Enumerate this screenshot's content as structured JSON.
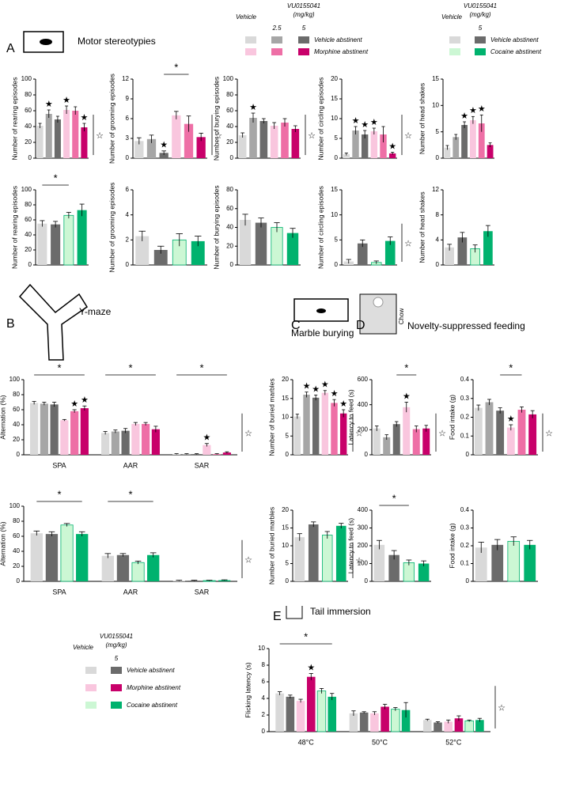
{
  "sections": [
    {
      "letter": "A",
      "title": "Motor stereotypies"
    },
    {
      "letter": "B",
      "title": "Y-maze"
    },
    {
      "letter": "C",
      "title": "Marble burying"
    },
    {
      "letter": "D",
      "title": "Novelty-suppressed feeding"
    },
    {
      "letter": "E",
      "title": "Tail immersion"
    }
  ],
  "chow": "Chow",
  "legend_morphine": {
    "vehicle": "Vehicle",
    "drug": "VU0155041",
    "unit": "(mg/kg)",
    "doses": [
      "2.5",
      "5"
    ],
    "rows": [
      {
        "label": "Vehicle abstinent",
        "colors": [
          "#d9d9d9",
          "#a6a6a6",
          "#6b6b6b"
        ]
      },
      {
        "label": "Morphine abstinent",
        "colors": [
          "#f9c6de",
          "#ee6fa6",
          "#c8006a"
        ]
      }
    ]
  },
  "legend_cocaine": {
    "vehicle": "Vehicle",
    "drug": "VU0155041",
    "unit": "(mg/kg)",
    "doses": [
      "5"
    ],
    "rows": [
      {
        "label": "Vehicle abstinent",
        "colors": [
          "#d9d9d9",
          "#6b6b6b"
        ]
      },
      {
        "label": "Cocaine abstinent",
        "colors": [
          "#ccf7d4",
          "#00b26e"
        ]
      }
    ]
  },
  "legend_all": {
    "vehicle": "Vehicle",
    "drug": "VU0155041",
    "unit": "(mg/kg)",
    "doses": [
      "5"
    ],
    "rows": [
      {
        "label": "Vehicle abstinent",
        "colors": [
          "#d9d9d9",
          "#6b6b6b"
        ]
      },
      {
        "label": "Morphine abstinent",
        "colors": [
          "#f9c6de",
          "#c8006a"
        ]
      },
      {
        "label": "Cocaine abstinent",
        "colors": [
          "#ccf7d4",
          "#00b26e"
        ]
      }
    ]
  },
  "chart_data": [
    {
      "type": "bar",
      "ylabel": "Number of rearing episodes",
      "ylim": [
        0,
        100
      ],
      "yticks": [
        0,
        20,
        40,
        60,
        80,
        100
      ],
      "values": [
        41,
        56,
        49,
        61,
        60,
        39
      ],
      "errors": [
        3,
        5,
        4,
        5,
        5,
        5
      ],
      "colors": [
        "#d9d9d9",
        "#a6a6a6",
        "#6b6b6b",
        "#f9c6de",
        "#ee6fa6",
        "#c8006a"
      ],
      "stars": [
        null,
        "★",
        null,
        "★",
        null,
        "★"
      ],
      "side_label": "☆"
    },
    {
      "type": "bar",
      "ylabel": "Number of grooming episodes",
      "ylim": [
        0,
        12
      ],
      "yticks": [
        0,
        3,
        6,
        9,
        12
      ],
      "values": [
        2.6,
        2.9,
        0.8,
        6.5,
        5.2,
        3.2
      ],
      "errors": [
        0.5,
        0.6,
        0.3,
        0.6,
        1.2,
        0.6
      ],
      "colors": [
        "#d9d9d9",
        "#a6a6a6",
        "#6b6b6b",
        "#f9c6de",
        "#ee6fa6",
        "#c8006a"
      ],
      "stars": [
        null,
        null,
        "★",
        null,
        null,
        null
      ],
      "bracket": {
        "label": "*",
        "span": [
          2,
          4
        ]
      },
      "side_label": "☆"
    },
    {
      "type": "bar",
      "ylabel": "Number of burying episodes",
      "ylim": [
        0,
        100
      ],
      "yticks": [
        0,
        20,
        40,
        60,
        80,
        100
      ],
      "values": [
        29,
        51,
        47,
        41,
        45,
        37
      ],
      "errors": [
        3,
        6,
        3,
        4,
        5,
        4
      ],
      "colors": [
        "#d9d9d9",
        "#a6a6a6",
        "#6b6b6b",
        "#f9c6de",
        "#ee6fa6",
        "#c8006a"
      ],
      "stars": [
        null,
        "★",
        null,
        null,
        null,
        null
      ],
      "side_label": "☆"
    },
    {
      "type": "bar",
      "ylabel": "Number of circling episodes",
      "ylim": [
        0,
        20
      ],
      "yticks": [
        0,
        5,
        10,
        15,
        20
      ],
      "values": [
        1,
        7,
        6,
        6.8,
        6,
        1.2
      ],
      "errors": [
        0.3,
        1,
        1,
        0.8,
        2,
        0.3
      ],
      "colors": [
        "#d9d9d9",
        "#a6a6a6",
        "#6b6b6b",
        "#f9c6de",
        "#ee6fa6",
        "#c8006a"
      ],
      "stars": [
        null,
        "★",
        "★",
        "★",
        null,
        "★"
      ],
      "side_label": "☆"
    },
    {
      "type": "bar",
      "ylabel": "Number of head shakes",
      "ylim": [
        0,
        15
      ],
      "yticks": [
        0,
        5,
        10,
        15
      ],
      "values": [
        2,
        4,
        6.3,
        7.2,
        6.6,
        2.5
      ],
      "errors": [
        0.4,
        0.5,
        0.6,
        0.7,
        1.6,
        0.4
      ],
      "colors": [
        "#d9d9d9",
        "#a6a6a6",
        "#6b6b6b",
        "#f9c6de",
        "#ee6fa6",
        "#c8006a"
      ],
      "stars": [
        null,
        null,
        "★",
        "★",
        "★",
        null
      ]
    },
    {
      "type": "bar",
      "ylabel": "Number of rearing episodes",
      "ylim": [
        0,
        100
      ],
      "yticks": [
        0,
        20,
        40,
        60,
        80,
        100
      ],
      "values": [
        55,
        54,
        66,
        73
      ],
      "errors": [
        4,
        4,
        4,
        8
      ],
      "colors": [
        "#d9d9d9",
        "#6b6b6b",
        "#ccf7d4",
        "#00b26e"
      ],
      "bracket": {
        "label": "*",
        "span": [
          0,
          2
        ]
      }
    },
    {
      "type": "bar",
      "ylabel": "Number of grooming episodes",
      "ylim": [
        0,
        6
      ],
      "yticks": [
        0,
        2,
        4,
        6
      ],
      "values": [
        2.3,
        1.2,
        2.0,
        1.9
      ],
      "errors": [
        0.4,
        0.3,
        0.5,
        0.4
      ],
      "colors": [
        "#d9d9d9",
        "#6b6b6b",
        "#ccf7d4",
        "#00b26e"
      ]
    },
    {
      "type": "bar",
      "ylabel": "Number of burying episodes",
      "ylim": [
        0,
        80
      ],
      "yticks": [
        0,
        20,
        40,
        60,
        80
      ],
      "values": [
        48,
        45,
        40,
        34
      ],
      "errors": [
        6,
        5,
        5,
        5
      ],
      "colors": [
        "#d9d9d9",
        "#6b6b6b",
        "#ccf7d4",
        "#00b26e"
      ]
    },
    {
      "type": "bar",
      "ylabel": "Number of circling episodes",
      "ylim": [
        0,
        15
      ],
      "yticks": [
        0,
        5,
        10,
        15
      ],
      "values": [
        0.7,
        4.3,
        0.5,
        4.8
      ],
      "errors": [
        0.4,
        0.7,
        0.3,
        0.8
      ],
      "colors": [
        "#d9d9d9",
        "#6b6b6b",
        "#ccf7d4",
        "#00b26e"
      ],
      "side_label": "☆"
    },
    {
      "type": "bar",
      "ylabel": "Number of head shakes",
      "ylim": [
        0,
        12
      ],
      "yticks": [
        0,
        4,
        8,
        12
      ],
      "values": [
        2.8,
        4.4,
        2.6,
        5.4
      ],
      "errors": [
        0.5,
        0.8,
        0.6,
        0.9
      ],
      "colors": [
        "#d9d9d9",
        "#6b6b6b",
        "#ccf7d4",
        "#00b26e"
      ]
    },
    {
      "type": "grouped",
      "ylabel": "Alternation (%)",
      "ylim": [
        0,
        100
      ],
      "yticks": [
        0,
        20,
        40,
        60,
        80,
        100
      ],
      "categories": [
        "SPA",
        "AAR",
        "SAR"
      ],
      "series": [
        {
          "color": "#d9d9d9",
          "values": [
            69,
            29,
            1
          ],
          "errors": [
            2,
            2,
            0.5
          ],
          "stars": [
            null,
            null,
            null
          ]
        },
        {
          "color": "#a6a6a6",
          "values": [
            68,
            31,
            1
          ],
          "errors": [
            2,
            2,
            0.5
          ],
          "stars": [
            null,
            null,
            null
          ]
        },
        {
          "color": "#6b6b6b",
          "values": [
            67,
            32,
            1
          ],
          "errors": [
            3,
            3,
            0.5
          ],
          "stars": [
            null,
            null,
            null
          ]
        },
        {
          "color": "#f9c6de",
          "values": [
            46,
            41,
            13
          ],
          "errors": [
            1,
            2,
            2
          ],
          "stars": [
            null,
            null,
            "★"
          ]
        },
        {
          "color": "#ee6fa6",
          "values": [
            58,
            41,
            1
          ],
          "errors": [
            2,
            2,
            0.5
          ],
          "stars": [
            "★",
            null,
            null
          ]
        },
        {
          "color": "#c8006a",
          "values": [
            62,
            34,
            3
          ],
          "errors": [
            3,
            4,
            1
          ],
          "stars": [
            "★",
            null,
            null
          ]
        }
      ],
      "brackets": [
        {
          "label": "*",
          "category": 0
        },
        {
          "label": "*",
          "category": 1
        },
        {
          "label": "*",
          "category": 2
        }
      ],
      "side_label": "☆"
    },
    {
      "type": "grouped",
      "ylabel": "Alternation (%)",
      "ylim": [
        0,
        100
      ],
      "yticks": [
        0,
        20,
        40,
        60,
        80,
        100
      ],
      "categories": [
        "SPA",
        "AAR",
        "SAR"
      ],
      "series": [
        {
          "color": "#d9d9d9",
          "values": [
            64,
            34,
            1
          ],
          "errors": [
            3,
            3,
            0.5
          ],
          "stars": [
            null,
            null,
            null
          ]
        },
        {
          "color": "#6b6b6b",
          "values": [
            63,
            35,
            1
          ],
          "errors": [
            3,
            2,
            0.5
          ],
          "stars": [
            null,
            null,
            null
          ]
        },
        {
          "color": "#ccf7d4",
          "values": [
            75,
            25,
            1
          ],
          "errors": [
            2,
            2,
            0.5
          ],
          "stars": [
            null,
            null,
            null
          ]
        },
        {
          "color": "#00b26e",
          "values": [
            63,
            35,
            1.5
          ],
          "errors": [
            3,
            3,
            0.5
          ],
          "stars": [
            null,
            null,
            null
          ]
        }
      ],
      "brackets": [
        {
          "label": "*",
          "category": 0
        },
        {
          "label": "*",
          "category": 1
        }
      ],
      "side_label": "☆"
    },
    {
      "type": "bar",
      "ylabel": "Number of buried marbles",
      "ylim": [
        0,
        20
      ],
      "yticks": [
        0,
        5,
        10,
        15,
        20
      ],
      "values": [
        10.2,
        16,
        15.2,
        16.5,
        13.8,
        11
      ],
      "errors": [
        0.6,
        0.7,
        0.7,
        0.6,
        0.9,
        1
      ],
      "colors": [
        "#d9d9d9",
        "#a6a6a6",
        "#6b6b6b",
        "#f9c6de",
        "#ee6fa6",
        "#c8006a"
      ],
      "stars": [
        null,
        "★",
        "★",
        "★",
        "★",
        "★"
      ],
      "side_label": "☆"
    },
    {
      "type": "bar",
      "ylabel": "Number of buried marbles",
      "ylim": [
        0,
        20
      ],
      "yticks": [
        0,
        5,
        10,
        15,
        20
      ],
      "values": [
        12.4,
        16,
        13,
        15.6
      ],
      "errors": [
        1,
        0.7,
        1,
        0.7
      ],
      "colors": [
        "#d9d9d9",
        "#6b6b6b",
        "#ccf7d4",
        "#00b26e"
      ],
      "side_label": "☆"
    },
    {
      "type": "bar",
      "ylabel": "Latency to feed (s)",
      "ylim": [
        0,
        600
      ],
      "yticks": [
        0,
        200,
        400,
        600
      ],
      "values": [
        210,
        140,
        245,
        380,
        205,
        210
      ],
      "errors": [
        20,
        20,
        20,
        40,
        25,
        25
      ],
      "colors": [
        "#d9d9d9",
        "#a6a6a6",
        "#6b6b6b",
        "#f9c6de",
        "#ee6fa6",
        "#c8006a"
      ],
      "stars": [
        null,
        null,
        null,
        "★",
        null,
        null
      ],
      "bracket": {
        "label": "*",
        "span": [
          2,
          4
        ]
      },
      "side_label": "☆"
    },
    {
      "type": "bar",
      "ylabel": "Food intake (g)",
      "ylim": [
        0,
        0.4
      ],
      "yticks": [
        0,
        0.1,
        0.2,
        0.3,
        0.4
      ],
      "values": [
        0.25,
        0.28,
        0.235,
        0.145,
        0.24,
        0.215
      ],
      "errors": [
        0.015,
        0.015,
        0.015,
        0.015,
        0.015,
        0.02
      ],
      "colors": [
        "#d9d9d9",
        "#a6a6a6",
        "#6b6b6b",
        "#f9c6de",
        "#ee6fa6",
        "#c8006a"
      ],
      "stars": [
        null,
        null,
        null,
        "★",
        null,
        null
      ],
      "bracket": {
        "label": "*",
        "span": [
          2,
          4
        ]
      },
      "side_label": "☆"
    },
    {
      "type": "bar",
      "ylabel": "Latency to feed (s)",
      "ylim": [
        0,
        400
      ],
      "yticks": [
        0,
        100,
        200,
        300,
        400
      ],
      "values": [
        205,
        148,
        105,
        100
      ],
      "errors": [
        25,
        25,
        15,
        15
      ],
      "colors": [
        "#d9d9d9",
        "#6b6b6b",
        "#ccf7d4",
        "#00b26e"
      ],
      "bracket": {
        "label": "*",
        "span": [
          0,
          2
        ]
      }
    },
    {
      "type": "bar",
      "ylabel": "Food intake (g)",
      "ylim": [
        0,
        0.4
      ],
      "yticks": [
        0,
        0.1,
        0.2,
        0.3,
        0.4
      ],
      "values": [
        0.19,
        0.205,
        0.225,
        0.205
      ],
      "errors": [
        0.03,
        0.03,
        0.025,
        0.025
      ],
      "colors": [
        "#d9d9d9",
        "#6b6b6b",
        "#ccf7d4",
        "#00b26e"
      ]
    },
    {
      "type": "grouped",
      "ylabel": "Flicking latency (s)",
      "ylim": [
        0,
        10
      ],
      "yticks": [
        0,
        2,
        4,
        6,
        8,
        10
      ],
      "categories": [
        "48°C",
        "50°C",
        "52°C"
      ],
      "series": [
        {
          "color": "#d9d9d9",
          "values": [
            4.6,
            2.2,
            1.4
          ],
          "errors": [
            0.2,
            0.3,
            0.1
          ],
          "stars": [
            null,
            null,
            null
          ]
        },
        {
          "color": "#6b6b6b",
          "values": [
            4.2,
            2.3,
            1.1
          ],
          "errors": [
            0.2,
            0.1,
            0.1
          ],
          "stars": [
            null,
            null,
            null
          ]
        },
        {
          "color": "#f9c6de",
          "values": [
            3.7,
            2.2,
            1.2
          ],
          "errors": [
            0.2,
            0.2,
            0.2
          ],
          "stars": [
            null,
            null,
            null
          ]
        },
        {
          "color": "#c8006a",
          "values": [
            6.6,
            3.0,
            1.6
          ],
          "errors": [
            0.4,
            0.3,
            0.3
          ],
          "stars": [
            "★",
            null,
            null
          ]
        },
        {
          "color": "#ccf7d4",
          "values": [
            4.9,
            2.7,
            1.3
          ],
          "errors": [
            0.3,
            0.2,
            0.1
          ],
          "stars": [
            null,
            null,
            null
          ]
        },
        {
          "color": "#00b26e",
          "values": [
            4.2,
            2.6,
            1.4
          ],
          "errors": [
            0.4,
            0.9,
            0.2
          ],
          "stars": [
            null,
            null,
            null
          ]
        }
      ],
      "brackets": [
        {
          "label": "*",
          "category": 0
        }
      ],
      "side_label": "☆"
    }
  ]
}
